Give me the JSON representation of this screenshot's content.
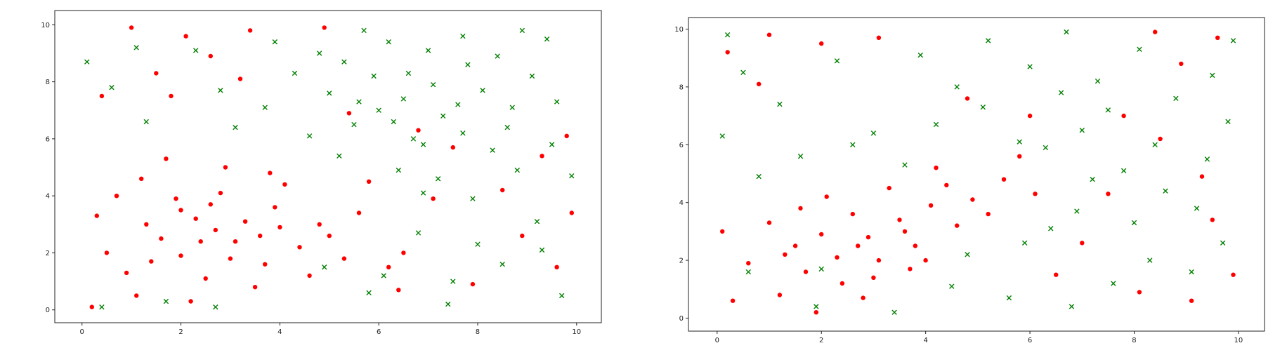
{
  "chart_data": [
    {
      "type": "scatter",
      "title": "",
      "xlabel": "",
      "ylabel": "",
      "xlim": [
        -0.55,
        10.5
      ],
      "ylim": [
        -0.45,
        10.5
      ],
      "xticks": [
        0,
        2,
        4,
        6,
        8,
        10
      ],
      "yticks": [
        0,
        2,
        4,
        6,
        8,
        10
      ],
      "grid": false,
      "legend": "none",
      "series": [
        {
          "marker": "circle",
          "color": "#ff0000",
          "points": [
            [
              1.6,
              2.5
            ],
            [
              2.3,
              3.2
            ],
            [
              3.1,
              2.4
            ],
            [
              0.9,
              1.3
            ],
            [
              2.8,
              4.1
            ],
            [
              3.9,
              3.6
            ],
            [
              1.2,
              4.6
            ],
            [
              2.5,
              1.1
            ],
            [
              4.4,
              2.2
            ],
            [
              3.5,
              0.8
            ],
            [
              0.5,
              2.0
            ],
            [
              1.9,
              3.9
            ],
            [
              2.0,
              1.9
            ],
            [
              3.3,
              3.1
            ],
            [
              4.1,
              4.4
            ],
            [
              0.3,
              3.3
            ],
            [
              1.4,
              1.7
            ],
            [
              2.7,
              2.8
            ],
            [
              3.7,
              1.6
            ],
            [
              4.8,
              3.0
            ],
            [
              5.3,
              1.8
            ],
            [
              5.6,
              3.4
            ],
            [
              1.1,
              0.5
            ],
            [
              2.2,
              0.3
            ],
            [
              4.6,
              1.2
            ],
            [
              0.7,
              4.0
            ],
            [
              1.7,
              5.3
            ],
            [
              2.9,
              5.0
            ],
            [
              3.8,
              4.8
            ],
            [
              2.4,
              2.4
            ],
            [
              3.0,
              1.8
            ],
            [
              1.3,
              3.0
            ],
            [
              4.0,
              2.9
            ],
            [
              5.0,
              2.6
            ],
            [
              6.2,
              1.5
            ],
            [
              1.0,
              9.9
            ],
            [
              2.1,
              9.6
            ],
            [
              3.4,
              9.8
            ],
            [
              1.5,
              8.3
            ],
            [
              2.6,
              8.9
            ],
            [
              0.4,
              7.5
            ],
            [
              3.2,
              8.1
            ],
            [
              4.9,
              9.9
            ],
            [
              1.8,
              7.5
            ],
            [
              5.4,
              6.9
            ],
            [
              6.8,
              6.3
            ],
            [
              7.5,
              5.7
            ],
            [
              8.9,
              2.6
            ],
            [
              9.6,
              1.5
            ],
            [
              9.9,
              3.4
            ],
            [
              9.3,
              5.4
            ],
            [
              7.9,
              0.9
            ],
            [
              7.1,
              3.9
            ],
            [
              6.5,
              2.0
            ],
            [
              8.5,
              4.2
            ],
            [
              9.8,
              6.1
            ],
            [
              6.4,
              0.7
            ],
            [
              5.8,
              4.5
            ],
            [
              0.2,
              0.1
            ],
            [
              2.0,
              3.5
            ],
            [
              3.6,
              2.6
            ],
            [
              2.6,
              3.7
            ]
          ]
        },
        {
          "marker": "x",
          "color": "#008000",
          "points": [
            [
              6.5,
              7.4
            ],
            [
              7.3,
              6.8
            ],
            [
              5.9,
              8.2
            ],
            [
              8.1,
              7.7
            ],
            [
              6.9,
              5.8
            ],
            [
              7.8,
              8.6
            ],
            [
              5.5,
              6.5
            ],
            [
              8.6,
              6.4
            ],
            [
              6.2,
              9.4
            ],
            [
              7.0,
              9.1
            ],
            [
              9.1,
              8.2
            ],
            [
              9.6,
              7.3
            ],
            [
              5.0,
              7.6
            ],
            [
              4.3,
              8.3
            ],
            [
              6.7,
              6.0
            ],
            [
              7.6,
              7.2
            ],
            [
              8.3,
              5.6
            ],
            [
              6.0,
              7.0
            ],
            [
              7.2,
              4.6
            ],
            [
              8.8,
              4.9
            ],
            [
              9.4,
              9.5
            ],
            [
              4.6,
              6.1
            ],
            [
              5.7,
              9.8
            ],
            [
              6.4,
              4.9
            ],
            [
              7.9,
              3.9
            ],
            [
              9.2,
              3.1
            ],
            [
              6.8,
              2.7
            ],
            [
              8.5,
              1.6
            ],
            [
              9.7,
              0.5
            ],
            [
              7.4,
              0.2
            ],
            [
              0.1,
              8.7
            ],
            [
              0.6,
              7.8
            ],
            [
              1.3,
              6.6
            ],
            [
              2.8,
              7.7
            ],
            [
              1.1,
              9.2
            ],
            [
              3.9,
              9.4
            ],
            [
              3.1,
              6.4
            ],
            [
              5.2,
              5.4
            ],
            [
              9.9,
              4.7
            ],
            [
              6.1,
              1.2
            ],
            [
              4.9,
              1.5
            ],
            [
              7.7,
              9.6
            ],
            [
              8.9,
              9.8
            ],
            [
              6.6,
              8.3
            ],
            [
              5.3,
              8.7
            ],
            [
              8.4,
              8.9
            ],
            [
              7.1,
              7.9
            ],
            [
              6.3,
              6.6
            ],
            [
              5.6,
              7.3
            ],
            [
              7.7,
              6.2
            ],
            [
              8.7,
              7.1
            ],
            [
              4.8,
              9.0
            ],
            [
              6.9,
              4.1
            ],
            [
              9.5,
              5.8
            ],
            [
              3.7,
              7.1
            ],
            [
              2.3,
              9.1
            ],
            [
              8.0,
              2.3
            ],
            [
              9.3,
              2.1
            ],
            [
              5.8,
              0.6
            ],
            [
              7.5,
              1.0
            ],
            [
              0.4,
              0.1
            ],
            [
              2.7,
              0.1
            ],
            [
              1.7,
              0.3
            ]
          ]
        }
      ]
    },
    {
      "type": "scatter",
      "title": "",
      "xlabel": "",
      "ylabel": "",
      "xlim": [
        -0.55,
        10.5
      ],
      "ylim": [
        -0.45,
        10.4
      ],
      "xticks": [
        0,
        2,
        4,
        6,
        8,
        10
      ],
      "yticks": [
        0,
        2,
        4,
        6,
        8,
        10
      ],
      "grid": false,
      "legend": "none",
      "series": [
        {
          "marker": "circle",
          "color": "#ff0000",
          "points": [
            [
              2.9,
              2.8
            ],
            [
              3.5,
              3.4
            ],
            [
              2.3,
              2.1
            ],
            [
              4.1,
              3.9
            ],
            [
              1.7,
              1.6
            ],
            [
              3.1,
              2.0
            ],
            [
              2.6,
              3.6
            ],
            [
              4.4,
              4.6
            ],
            [
              1.2,
              0.8
            ],
            [
              2.0,
              2.9
            ],
            [
              3.8,
              2.5
            ],
            [
              4.9,
              4.1
            ],
            [
              5.5,
              4.8
            ],
            [
              1.5,
              2.5
            ],
            [
              2.4,
              1.2
            ],
            [
              3.3,
              4.5
            ],
            [
              0.6,
              1.9
            ],
            [
              1.0,
              3.3
            ],
            [
              3.0,
              1.4
            ],
            [
              4.6,
              3.2
            ],
            [
              5.8,
              5.6
            ],
            [
              6.1,
              4.3
            ],
            [
              0.3,
              0.6
            ],
            [
              1.9,
              0.2
            ],
            [
              2.8,
              0.7
            ],
            [
              3.7,
              1.7
            ],
            [
              4.2,
              5.2
            ],
            [
              5.2,
              3.6
            ],
            [
              2.1,
              4.2
            ],
            [
              1.3,
              2.2
            ],
            [
              0.2,
              9.2
            ],
            [
              1.0,
              9.8
            ],
            [
              2.0,
              9.5
            ],
            [
              3.1,
              9.7
            ],
            [
              0.8,
              8.1
            ],
            [
              4.8,
              7.6
            ],
            [
              6.0,
              7.0
            ],
            [
              7.5,
              4.3
            ],
            [
              8.5,
              6.2
            ],
            [
              9.3,
              4.9
            ],
            [
              9.9,
              1.5
            ],
            [
              9.5,
              3.4
            ],
            [
              8.1,
              0.9
            ],
            [
              7.0,
              2.6
            ],
            [
              6.5,
              1.5
            ],
            [
              8.9,
              8.8
            ],
            [
              9.6,
              9.7
            ],
            [
              8.4,
              9.9
            ],
            [
              9.1,
              0.6
            ],
            [
              7.8,
              7.0
            ],
            [
              0.1,
              3.0
            ],
            [
              2.7,
              2.5
            ],
            [
              3.6,
              3.0
            ],
            [
              1.6,
              3.8
            ],
            [
              4.0,
              2.0
            ]
          ]
        },
        {
          "marker": "x",
          "color": "#008000",
          "points": [
            [
              0.2,
              9.8
            ],
            [
              0.5,
              8.5
            ],
            [
              1.2,
              7.4
            ],
            [
              2.3,
              8.9
            ],
            [
              3.0,
              6.4
            ],
            [
              3.9,
              9.1
            ],
            [
              4.6,
              8.0
            ],
            [
              5.2,
              9.6
            ],
            [
              6.0,
              8.7
            ],
            [
              6.7,
              9.9
            ],
            [
              7.3,
              8.2
            ],
            [
              8.1,
              9.3
            ],
            [
              8.8,
              7.6
            ],
            [
              9.5,
              8.4
            ],
            [
              9.8,
              6.8
            ],
            [
              7.0,
              6.5
            ],
            [
              6.3,
              5.9
            ],
            [
              7.8,
              5.1
            ],
            [
              8.6,
              4.4
            ],
            [
              9.2,
              3.8
            ],
            [
              9.7,
              2.6
            ],
            [
              8.3,
              2.0
            ],
            [
              7.6,
              1.2
            ],
            [
              6.8,
              0.4
            ],
            [
              5.6,
              0.7
            ],
            [
              4.5,
              1.1
            ],
            [
              9.1,
              1.6
            ],
            [
              8.0,
              3.3
            ],
            [
              6.9,
              3.7
            ],
            [
              5.9,
              2.6
            ],
            [
              0.8,
              4.9
            ],
            [
              0.1,
              6.3
            ],
            [
              1.6,
              5.6
            ],
            [
              2.6,
              6.0
            ],
            [
              3.6,
              5.3
            ],
            [
              4.2,
              6.7
            ],
            [
              5.1,
              7.3
            ],
            [
              5.8,
              6.1
            ],
            [
              6.6,
              7.8
            ],
            [
              7.5,
              7.2
            ],
            [
              8.4,
              6.0
            ],
            [
              9.4,
              5.5
            ],
            [
              1.9,
              0.4
            ],
            [
              0.6,
              1.6
            ],
            [
              3.4,
              0.2
            ],
            [
              9.9,
              9.6
            ],
            [
              7.2,
              4.8
            ],
            [
              6.4,
              3.1
            ],
            [
              4.8,
              2.2
            ],
            [
              2.0,
              1.7
            ]
          ]
        }
      ]
    }
  ]
}
